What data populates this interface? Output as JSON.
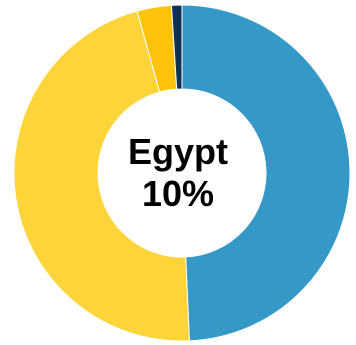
{
  "chart_data": {
    "type": "pie",
    "variant": "donut",
    "center_label": {
      "name": "Egypt",
      "value": "10%"
    },
    "slices": [
      {
        "value": 49.3,
        "color": "#3499C6"
      },
      {
        "value": 46.4,
        "color": "#FDD43A"
      },
      {
        "value": 3.3,
        "color": "#FDC30B"
      },
      {
        "value": 1.0,
        "color": "#0F3252"
      }
    ],
    "start": "top",
    "direction": "clockwise",
    "legend": "none"
  }
}
